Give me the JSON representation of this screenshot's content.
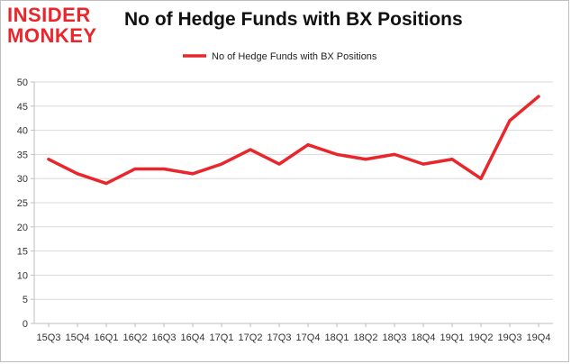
{
  "logo": {
    "line1": "INSIDER",
    "line2": "MONKEY"
  },
  "colors": {
    "line": "#e8262b",
    "grid": "#d9d9d9",
    "axis": "#bfbfbf",
    "logo": "#e8262b"
  },
  "chart_data": {
    "type": "line",
    "title": "No of Hedge Funds with BX Positions",
    "xlabel": "",
    "ylabel": "",
    "categories": [
      "15Q3",
      "15Q4",
      "16Q1",
      "16Q2",
      "16Q3",
      "16Q4",
      "17Q1",
      "17Q2",
      "17Q3",
      "17Q4",
      "18Q1",
      "18Q2",
      "18Q3",
      "18Q4",
      "19Q1",
      "19Q2",
      "19Q3",
      "19Q4"
    ],
    "series": [
      {
        "name": "No of Hedge Funds with BX Positions",
        "values": [
          34,
          31,
          29,
          32,
          32,
          31,
          33,
          36,
          33,
          37,
          35,
          34,
          35,
          33,
          34,
          30,
          42,
          47
        ]
      }
    ],
    "ylim": [
      0,
      50
    ],
    "yticks": [
      0,
      5,
      10,
      15,
      20,
      25,
      30,
      35,
      40,
      45,
      50
    ],
    "grid": true,
    "legend": "top-center"
  }
}
